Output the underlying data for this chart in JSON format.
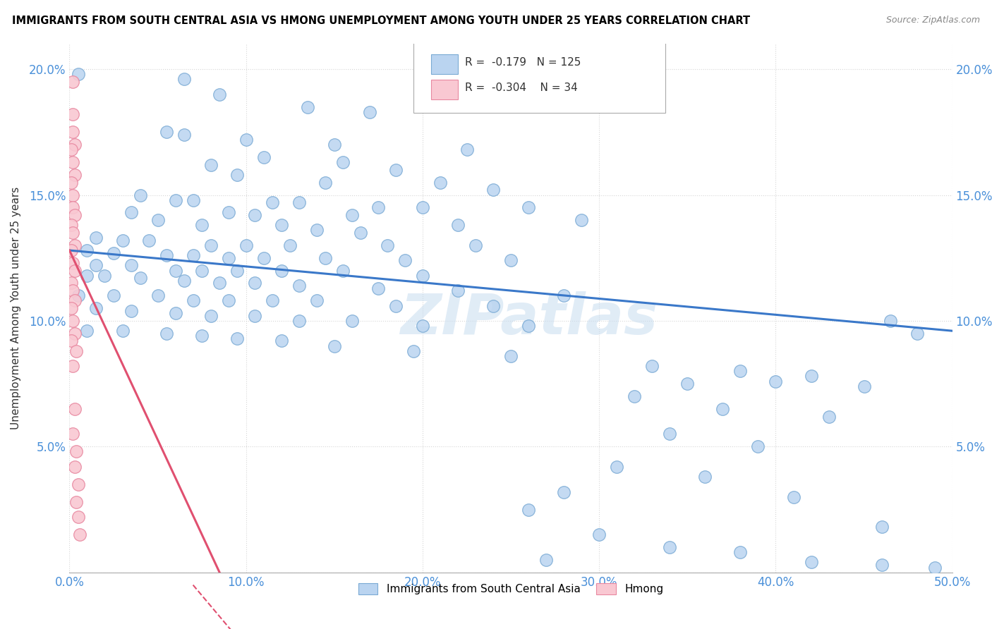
{
  "title": "IMMIGRANTS FROM SOUTH CENTRAL ASIA VS HMONG UNEMPLOYMENT AMONG YOUTH UNDER 25 YEARS CORRELATION CHART",
  "source": "Source: ZipAtlas.com",
  "ylabel": "Unemployment Among Youth under 25 years",
  "x_tick_labels": [
    "0.0%",
    "10.0%",
    "20.0%",
    "30.0%",
    "40.0%",
    "50.0%"
  ],
  "x_tick_values": [
    0.0,
    0.1,
    0.2,
    0.3,
    0.4,
    0.5
  ],
  "y_tick_labels": [
    "",
    "5.0%",
    "10.0%",
    "15.0%",
    "20.0%"
  ],
  "y_tick_values": [
    0.0,
    0.05,
    0.1,
    0.15,
    0.2
  ],
  "xlim": [
    0.0,
    0.5
  ],
  "ylim": [
    0.0,
    0.21
  ],
  "R_blue": -0.179,
  "N_blue": 125,
  "R_pink": -0.304,
  "N_pink": 34,
  "blue_color": "#bad4f0",
  "blue_edge": "#7aaad4",
  "pink_color": "#f9c8d2",
  "pink_edge": "#e888a0",
  "trendline_blue": "#3a78c9",
  "trendline_pink": "#e05070",
  "watermark": "ZIPatlas",
  "legend_label_blue": "Immigrants from South Central Asia",
  "legend_label_pink": "Hmong",
  "blue_trendline_x": [
    0.0,
    0.5
  ],
  "blue_trendline_y": [
    0.128,
    0.096
  ],
  "pink_trendline_x": [
    0.0,
    0.085
  ],
  "pink_trendline_y": [
    0.128,
    0.0
  ],
  "blue_points": [
    [
      0.005,
      0.198
    ],
    [
      0.065,
      0.196
    ],
    [
      0.085,
      0.19
    ],
    [
      0.135,
      0.185
    ],
    [
      0.17,
      0.183
    ],
    [
      0.055,
      0.175
    ],
    [
      0.065,
      0.174
    ],
    [
      0.1,
      0.172
    ],
    [
      0.15,
      0.17
    ],
    [
      0.225,
      0.168
    ],
    [
      0.11,
      0.165
    ],
    [
      0.155,
      0.163
    ],
    [
      0.08,
      0.162
    ],
    [
      0.185,
      0.16
    ],
    [
      0.095,
      0.158
    ],
    [
      0.145,
      0.155
    ],
    [
      0.21,
      0.155
    ],
    [
      0.24,
      0.152
    ],
    [
      0.04,
      0.15
    ],
    [
      0.06,
      0.148
    ],
    [
      0.07,
      0.148
    ],
    [
      0.115,
      0.147
    ],
    [
      0.13,
      0.147
    ],
    [
      0.175,
      0.145
    ],
    [
      0.2,
      0.145
    ],
    [
      0.26,
      0.145
    ],
    [
      0.035,
      0.143
    ],
    [
      0.09,
      0.143
    ],
    [
      0.105,
      0.142
    ],
    [
      0.16,
      0.142
    ],
    [
      0.29,
      0.14
    ],
    [
      0.05,
      0.14
    ],
    [
      0.075,
      0.138
    ],
    [
      0.12,
      0.138
    ],
    [
      0.22,
      0.138
    ],
    [
      0.14,
      0.136
    ],
    [
      0.165,
      0.135
    ],
    [
      0.015,
      0.133
    ],
    [
      0.03,
      0.132
    ],
    [
      0.045,
      0.132
    ],
    [
      0.08,
      0.13
    ],
    [
      0.1,
      0.13
    ],
    [
      0.125,
      0.13
    ],
    [
      0.18,
      0.13
    ],
    [
      0.23,
      0.13
    ],
    [
      0.01,
      0.128
    ],
    [
      0.025,
      0.127
    ],
    [
      0.055,
      0.126
    ],
    [
      0.07,
      0.126
    ],
    [
      0.09,
      0.125
    ],
    [
      0.11,
      0.125
    ],
    [
      0.145,
      0.125
    ],
    [
      0.19,
      0.124
    ],
    [
      0.25,
      0.124
    ],
    [
      0.015,
      0.122
    ],
    [
      0.035,
      0.122
    ],
    [
      0.06,
      0.12
    ],
    [
      0.075,
      0.12
    ],
    [
      0.095,
      0.12
    ],
    [
      0.12,
      0.12
    ],
    [
      0.155,
      0.12
    ],
    [
      0.2,
      0.118
    ],
    [
      0.01,
      0.118
    ],
    [
      0.02,
      0.118
    ],
    [
      0.04,
      0.117
    ],
    [
      0.065,
      0.116
    ],
    [
      0.085,
      0.115
    ],
    [
      0.105,
      0.115
    ],
    [
      0.13,
      0.114
    ],
    [
      0.175,
      0.113
    ],
    [
      0.22,
      0.112
    ],
    [
      0.28,
      0.11
    ],
    [
      0.005,
      0.11
    ],
    [
      0.025,
      0.11
    ],
    [
      0.05,
      0.11
    ],
    [
      0.07,
      0.108
    ],
    [
      0.09,
      0.108
    ],
    [
      0.115,
      0.108
    ],
    [
      0.14,
      0.108
    ],
    [
      0.185,
      0.106
    ],
    [
      0.24,
      0.106
    ],
    [
      0.015,
      0.105
    ],
    [
      0.035,
      0.104
    ],
    [
      0.06,
      0.103
    ],
    [
      0.08,
      0.102
    ],
    [
      0.105,
      0.102
    ],
    [
      0.13,
      0.1
    ],
    [
      0.16,
      0.1
    ],
    [
      0.2,
      0.098
    ],
    [
      0.26,
      0.098
    ],
    [
      0.01,
      0.096
    ],
    [
      0.03,
      0.096
    ],
    [
      0.055,
      0.095
    ],
    [
      0.075,
      0.094
    ],
    [
      0.095,
      0.093
    ],
    [
      0.12,
      0.092
    ],
    [
      0.15,
      0.09
    ],
    [
      0.195,
      0.088
    ],
    [
      0.25,
      0.086
    ],
    [
      0.33,
      0.082
    ],
    [
      0.38,
      0.08
    ],
    [
      0.42,
      0.078
    ],
    [
      0.35,
      0.075
    ],
    [
      0.4,
      0.076
    ],
    [
      0.45,
      0.074
    ],
    [
      0.32,
      0.07
    ],
    [
      0.37,
      0.065
    ],
    [
      0.43,
      0.062
    ],
    [
      0.34,
      0.055
    ],
    [
      0.39,
      0.05
    ],
    [
      0.31,
      0.042
    ],
    [
      0.36,
      0.038
    ],
    [
      0.28,
      0.032
    ],
    [
      0.41,
      0.03
    ],
    [
      0.26,
      0.025
    ],
    [
      0.46,
      0.018
    ],
    [
      0.3,
      0.015
    ],
    [
      0.34,
      0.01
    ],
    [
      0.38,
      0.008
    ],
    [
      0.27,
      0.005
    ],
    [
      0.42,
      0.004
    ],
    [
      0.46,
      0.003
    ],
    [
      0.49,
      0.002
    ],
    [
      0.48,
      0.095
    ],
    [
      0.465,
      0.1
    ]
  ],
  "pink_points": [
    [
      0.002,
      0.195
    ],
    [
      0.002,
      0.182
    ],
    [
      0.002,
      0.175
    ],
    [
      0.003,
      0.17
    ],
    [
      0.001,
      0.168
    ],
    [
      0.002,
      0.163
    ],
    [
      0.003,
      0.158
    ],
    [
      0.001,
      0.155
    ],
    [
      0.002,
      0.15
    ],
    [
      0.002,
      0.145
    ],
    [
      0.003,
      0.142
    ],
    [
      0.001,
      0.138
    ],
    [
      0.002,
      0.135
    ],
    [
      0.003,
      0.13
    ],
    [
      0.001,
      0.128
    ],
    [
      0.002,
      0.123
    ],
    [
      0.003,
      0.12
    ],
    [
      0.001,
      0.115
    ],
    [
      0.002,
      0.112
    ],
    [
      0.003,
      0.108
    ],
    [
      0.001,
      0.105
    ],
    [
      0.002,
      0.1
    ],
    [
      0.003,
      0.095
    ],
    [
      0.001,
      0.092
    ],
    [
      0.004,
      0.088
    ],
    [
      0.002,
      0.082
    ],
    [
      0.003,
      0.065
    ],
    [
      0.002,
      0.055
    ],
    [
      0.004,
      0.048
    ],
    [
      0.003,
      0.042
    ],
    [
      0.005,
      0.035
    ],
    [
      0.004,
      0.028
    ],
    [
      0.005,
      0.022
    ],
    [
      0.006,
      0.015
    ]
  ]
}
